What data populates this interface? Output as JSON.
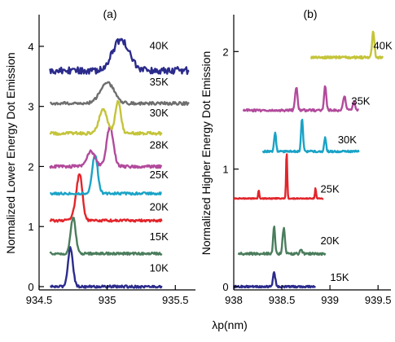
{
  "x_axis_label": "λp(nm)",
  "colors": {
    "navy": "#2b2b8c",
    "gray": "#6e6e6e",
    "yellow": "#c4c43a",
    "magenta": "#b24a9c",
    "cyan": "#1aa3c6",
    "red": "#e2252b",
    "green": "#4a7d5c"
  },
  "chart_data": [
    {
      "type": "line",
      "panel_label": "(a)",
      "ylabel": "Normalized Lower Energy Dot Emission",
      "xlim": [
        934.5,
        935.6
      ],
      "ylim": [
        0,
        4.5
      ],
      "xticks": [
        "934.5",
        "935",
        "935.5"
      ],
      "yticks": [
        "0",
        "1",
        "2",
        "3",
        "4"
      ],
      "series": [
        {
          "name": "10K",
          "color": "#2b2b8c",
          "offset": 0.0,
          "baseline_x": [
            934.58,
            935.4
          ],
          "noise": 0.02,
          "peaks": [
            [
              934.73,
              0.65,
              0.018
            ]
          ],
          "label_x": 935.38,
          "label_y": 0.25
        },
        {
          "name": "15K",
          "color": "#4a7d5c",
          "offset": 0.55,
          "baseline_x": [
            934.58,
            935.4
          ],
          "noise": 0.02,
          "peaks": [
            [
              934.75,
              0.6,
              0.018
            ]
          ],
          "label_x": 935.38,
          "label_y": 0.77
        },
        {
          "name": "20K",
          "color": "#e2252b",
          "offset": 1.1,
          "baseline_x": [
            934.58,
            935.4
          ],
          "noise": 0.02,
          "peaks": [
            [
              934.8,
              0.7,
              0.02
            ],
            [
              934.77,
              0.2,
              0.02
            ]
          ],
          "label_x": 935.38,
          "label_y": 1.27
        },
        {
          "name": "25K",
          "color": "#1aa3c6",
          "offset": 1.55,
          "baseline_x": [
            934.58,
            935.4
          ],
          "noise": 0.02,
          "peaks": [
            [
              934.91,
              0.65,
              0.02
            ]
          ],
          "label_x": 935.38,
          "label_y": 1.8
        },
        {
          "name": "28K",
          "color": "#b24a9c",
          "offset": 2.0,
          "baseline_x": [
            934.58,
            935.4
          ],
          "noise": 0.025,
          "peaks": [
            [
              934.88,
              0.25,
              0.03
            ],
            [
              935.02,
              0.65,
              0.025
            ]
          ],
          "label_x": 935.38,
          "label_y": 2.3
        },
        {
          "name": "30K",
          "color": "#c4c43a",
          "offset": 2.55,
          "baseline_x": [
            934.58,
            935.4
          ],
          "noise": 0.025,
          "peaks": [
            [
              934.97,
              0.4,
              0.03
            ],
            [
              935.08,
              0.55,
              0.02
            ]
          ],
          "label_x": 935.38,
          "label_y": 2.83
        },
        {
          "name": "35K",
          "color": "#6e6e6e",
          "offset": 3.05,
          "baseline_x": [
            934.58,
            935.6
          ],
          "noise": 0.025,
          "peaks": [
            [
              935.0,
              0.35,
              0.05
            ]
          ],
          "label_x": 935.38,
          "label_y": 3.35
        },
        {
          "name": "40K",
          "color": "#2b2b8c",
          "offset": 3.6,
          "baseline_x": [
            934.58,
            935.6
          ],
          "noise": 0.06,
          "peaks": [
            [
              935.1,
              0.5,
              0.06
            ]
          ],
          "label_x": 935.38,
          "label_y": 3.95
        }
      ]
    },
    {
      "type": "line",
      "panel_label": "(b)",
      "ylabel": "Normalized Higher Energy Dot Emission",
      "xlim": [
        938.0,
        939.6
      ],
      "ylim": [
        0,
        2.3
      ],
      "xticks": [
        "938",
        "938.5",
        "939",
        "939.5"
      ],
      "yticks": [
        "0",
        "1",
        "2"
      ],
      "series": [
        {
          "name": "15K",
          "color": "#2b2b8c",
          "offset": 0.0,
          "baseline_x": [
            938.0,
            938.85
          ],
          "noise": 0.008,
          "peaks": [
            [
              938.42,
              0.12,
              0.012
            ]
          ],
          "label_x": 939.1,
          "label_y": 0.05
        },
        {
          "name": "20K",
          "color": "#4a7d5c",
          "offset": 0.28,
          "baseline_x": [
            938.05,
            938.95
          ],
          "noise": 0.01,
          "peaks": [
            [
              938.42,
              0.23,
              0.01
            ],
            [
              938.52,
              0.22,
              0.012
            ],
            [
              938.7,
              0.04,
              0.01
            ]
          ],
          "label_x": 939.0,
          "label_y": 0.36
        },
        {
          "name": "25K",
          "color": "#e2252b",
          "offset": 0.75,
          "baseline_x": [
            938.0,
            938.93
          ],
          "noise": 0.004,
          "peaks": [
            [
              938.26,
              0.07,
              0.006
            ],
            [
              938.55,
              0.4,
              0.006
            ],
            [
              938.85,
              0.09,
              0.006
            ]
          ],
          "label_x": 939.0,
          "label_y": 0.8
        },
        {
          "name": "30K",
          "color": "#1aa3c6",
          "offset": 1.15,
          "baseline_x": [
            938.3,
            939.3
          ],
          "noise": 0.008,
          "peaks": [
            [
              938.43,
              0.16,
              0.01
            ],
            [
              938.71,
              0.28,
              0.01
            ],
            [
              938.95,
              0.12,
              0.01
            ]
          ],
          "label_x": 939.18,
          "label_y": 1.22
        },
        {
          "name": "35K",
          "color": "#b24a9c",
          "offset": 1.5,
          "baseline_x": [
            938.1,
            939.3
          ],
          "noise": 0.01,
          "peaks": [
            [
              938.65,
              0.2,
              0.012
            ],
            [
              938.95,
              0.2,
              0.012
            ],
            [
              939.15,
              0.12,
              0.015
            ],
            [
              939.25,
              0.07,
              0.012
            ]
          ],
          "label_x": 939.32,
          "label_y": 1.55
        },
        {
          "name": "40K",
          "color": "#c4c43a",
          "offset": 1.95,
          "baseline_x": [
            938.8,
            939.55
          ],
          "noise": 0.01,
          "peaks": [
            [
              939.45,
              0.22,
              0.012
            ]
          ],
          "label_x": 939.55,
          "label_y": 2.02
        }
      ]
    }
  ]
}
